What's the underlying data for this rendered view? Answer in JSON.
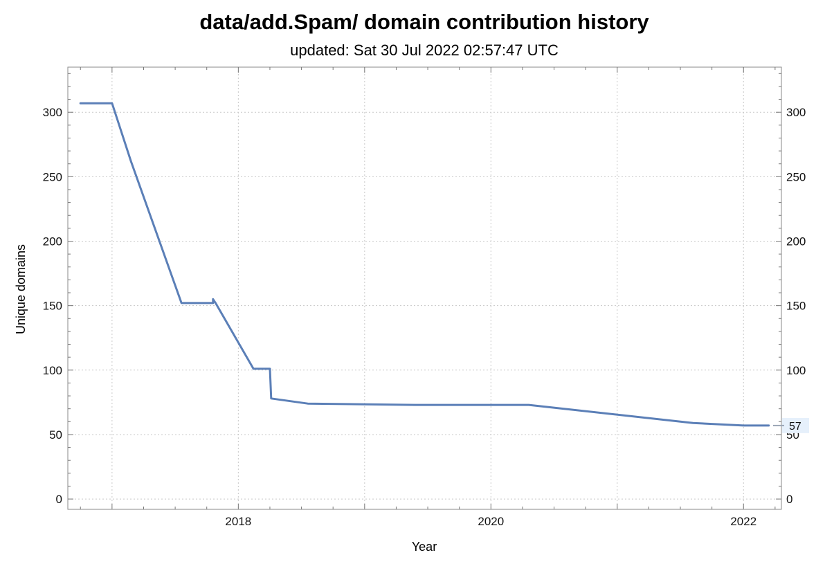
{
  "title": "data/add.Spam/ domain contribution history",
  "subtitle": "updated: Sat 30 Jul 2022 02:57:47 UTC",
  "chart_data": {
    "type": "line",
    "title": "data/add.Spam/ domain contribution history",
    "subtitle": "updated: Sat 30 Jul 2022 02:57:47 UTC",
    "xlabel": "Year",
    "ylabel": "Unique domains",
    "xlim": [
      2016.65,
      2022.3
    ],
    "ylim": [
      -8,
      335
    ],
    "x_ticks": [
      2018,
      2020,
      2022
    ],
    "x_tick_labels": [
      "2018",
      "2020",
      "2022"
    ],
    "y_ticks": [
      0,
      50,
      100,
      150,
      200,
      250,
      300
    ],
    "y_tick_labels": [
      "0",
      "50",
      "100",
      "150",
      "200",
      "250",
      "300"
    ],
    "grid": true,
    "series": [
      {
        "color": "#5b7fb7",
        "x": [
          2016.75,
          2017.0,
          2017.15,
          2017.55,
          2017.8,
          2017.8,
          2017.82,
          2018.12,
          2018.25,
          2018.26,
          2018.55,
          2019.4,
          2020.3,
          2021.6,
          2022.0,
          2022.2
        ],
        "y": [
          307,
          307,
          262,
          152,
          152,
          155,
          152,
          101,
          101,
          78,
          74,
          73,
          73,
          59,
          57,
          57
        ]
      }
    ],
    "last_value_label": "57",
    "last_value": 57
  }
}
